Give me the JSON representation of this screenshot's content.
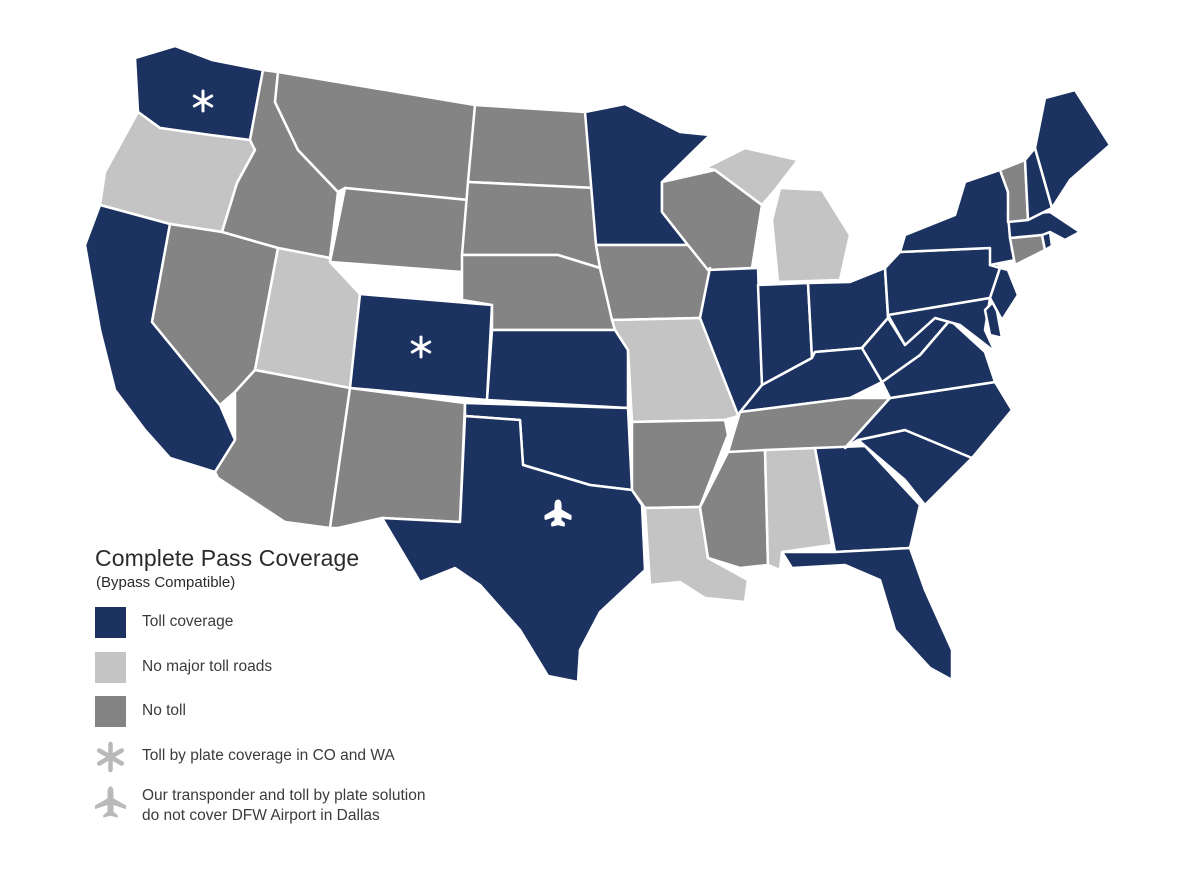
{
  "colors": {
    "toll_coverage": "#1c3260",
    "no_major_toll_roads": "#c4c4c4",
    "no_toll": "#848484",
    "state_border": "#ffffff",
    "icon_on_map": "#ffffff",
    "icon_in_legend": "#b9b9b9"
  },
  "legend": {
    "title": "Complete Pass Coverage",
    "subtitle": "(Bypass Compatible)",
    "items": [
      {
        "key": "toll_coverage",
        "label": "Toll coverage"
      },
      {
        "key": "no_major_toll_roads",
        "label": "No major toll roads"
      },
      {
        "key": "no_toll",
        "label": "No toll"
      }
    ],
    "plate_note": "Toll by plate coverage in CO and WA",
    "plate_icon": "asterisk-icon",
    "airport_note_line1": "Our transponder and toll by plate solution",
    "airport_note_line2": "do not cover DFW Airport in Dallas",
    "airport_icon": "airplane-icon"
  },
  "states": {
    "WA": "toll_coverage",
    "OR": "no_major_toll_roads",
    "CA": "toll_coverage",
    "ID": "no_toll",
    "NV": "no_toll",
    "MT": "no_toll",
    "WY": "no_toll",
    "UT": "no_major_toll_roads",
    "AZ": "no_toll",
    "CO": "toll_coverage",
    "NM": "no_toll",
    "ND": "no_toll",
    "SD": "no_toll",
    "NE": "no_toll",
    "KS": "toll_coverage",
    "OK": "toll_coverage",
    "TX": "toll_coverage",
    "MN": "toll_coverage",
    "IA": "no_toll",
    "MO": "no_major_toll_roads",
    "AR": "no_toll",
    "LA": "no_major_toll_roads",
    "WI": "no_toll",
    "IL": "toll_coverage",
    "MI": "no_major_toll_roads",
    "IN": "toll_coverage",
    "OH": "toll_coverage",
    "KY": "toll_coverage",
    "TN": "no_toll",
    "MS": "no_toll",
    "AL": "no_major_toll_roads",
    "GA": "toll_coverage",
    "FL": "toll_coverage",
    "SC": "toll_coverage",
    "NC": "toll_coverage",
    "VA": "toll_coverage",
    "WV": "toll_coverage",
    "PA": "toll_coverage",
    "NY": "toll_coverage",
    "VT": "no_toll",
    "NH": "toll_coverage",
    "ME": "toll_coverage",
    "MA": "toll_coverage",
    "RI": "toll_coverage",
    "CT": "no_toll",
    "NJ": "toll_coverage",
    "DE": "toll_coverage",
    "MD": "toll_coverage"
  },
  "markers": [
    {
      "state": "WA",
      "icon": "asterisk-icon"
    },
    {
      "state": "CO",
      "icon": "asterisk-icon"
    },
    {
      "state": "TX",
      "icon": "airplane-icon"
    }
  ]
}
